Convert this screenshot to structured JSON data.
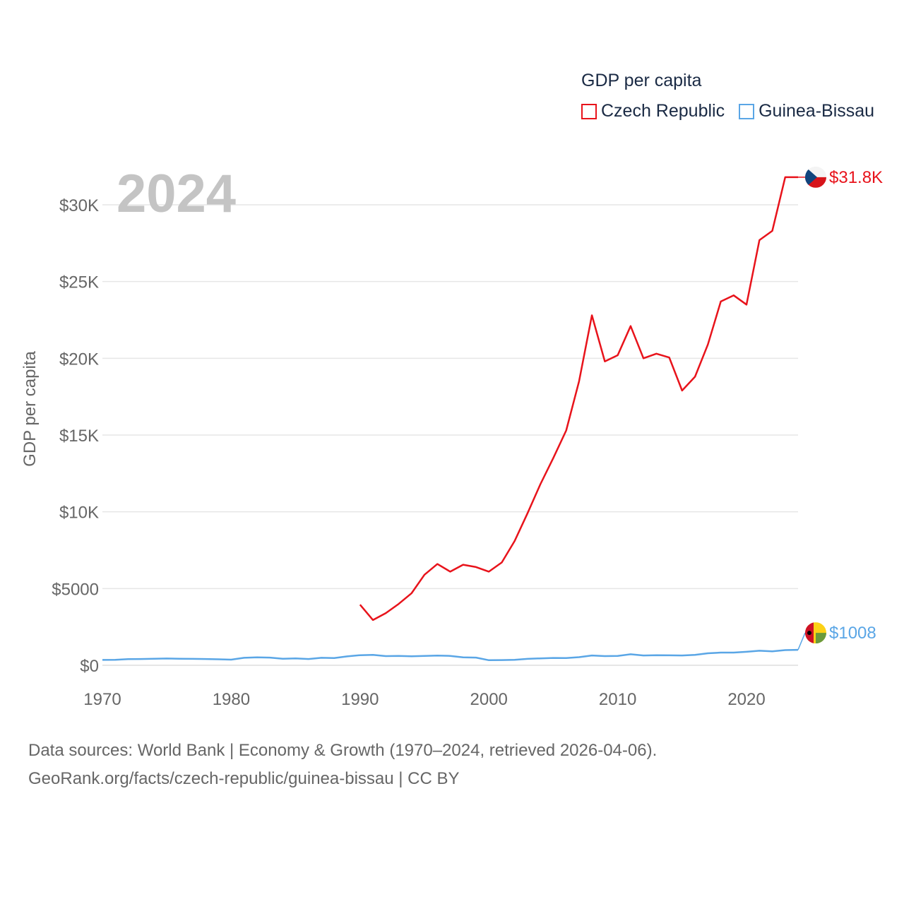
{
  "legend": {
    "title": "GDP per capita",
    "items": [
      {
        "label": "Czech Republic",
        "color": "#e8131b"
      },
      {
        "label": "Guinea-Bissau",
        "color": "#5aa6e6"
      }
    ]
  },
  "year_label": "2024",
  "footer": {
    "line1": "Data sources: World Bank | Economy & Growth (1970–2024, retrieved 2026-04-06).",
    "line2": "GeoRank.org/facts/czech-republic/guinea-bissau | CC BY"
  },
  "chart_data": {
    "type": "line",
    "title": "GDP per capita",
    "xlabel": "",
    "ylabel": "GDP per capita",
    "xlim": [
      1970,
      2024
    ],
    "ylim": [
      0,
      33000
    ],
    "grid": true,
    "legend_position": "top-right",
    "x_ticks": [
      1970,
      1980,
      1990,
      2000,
      2010,
      2020
    ],
    "x_tick_labels": [
      "1970",
      "1980",
      "1990",
      "2000",
      "2010",
      "2020"
    ],
    "y_ticks": [
      0,
      5000,
      10000,
      15000,
      20000,
      25000,
      30000
    ],
    "y_tick_labels": [
      "$0",
      "$5000",
      "$10K",
      "$15K",
      "$20K",
      "$25K",
      "$30K"
    ],
    "series": [
      {
        "name": "Czech Republic",
        "color": "#e8131b",
        "end_label": "$31.8K",
        "x": [
          1990,
          1991,
          1992,
          1993,
          1994,
          1995,
          1996,
          1997,
          1998,
          1999,
          2000,
          2001,
          2002,
          2003,
          2004,
          2005,
          2006,
          2007,
          2008,
          2009,
          2010,
          2011,
          2012,
          2013,
          2014,
          2015,
          2016,
          2017,
          2018,
          2019,
          2020,
          2021,
          2022,
          2023,
          2024
        ],
        "values": [
          3950,
          2950,
          3400,
          4000,
          4700,
          5900,
          6600,
          6100,
          6550,
          6400,
          6100,
          6700,
          8100,
          9900,
          11800,
          13500,
          15300,
          18500,
          22800,
          19800,
          20200,
          22100,
          20000,
          20300,
          20050,
          17900,
          18800,
          20900,
          23700,
          24100,
          23500,
          27700,
          28300,
          31800,
          31800
        ]
      },
      {
        "name": "Guinea-Bissau",
        "color": "#5aa6e6",
        "end_label": "$1008",
        "x": [
          1970,
          1971,
          1972,
          1973,
          1974,
          1975,
          1976,
          1977,
          1978,
          1979,
          1980,
          1981,
          1982,
          1983,
          1984,
          1985,
          1986,
          1987,
          1988,
          1989,
          1990,
          1991,
          1992,
          1993,
          1994,
          1995,
          1996,
          1997,
          1998,
          1999,
          2000,
          2001,
          2002,
          2003,
          2004,
          2005,
          2006,
          2007,
          2008,
          2009,
          2010,
          2011,
          2012,
          2013,
          2014,
          2015,
          2016,
          2017,
          2018,
          2019,
          2020,
          2021,
          2022,
          2023,
          2024
        ],
        "values": [
          350,
          360,
          400,
          410,
          430,
          440,
          430,
          420,
          410,
          390,
          370,
          490,
          520,
          500,
          430,
          450,
          410,
          490,
          470,
          580,
          660,
          680,
          600,
          610,
          590,
          610,
          630,
          610,
          520,
          500,
          330,
          340,
          360,
          420,
          450,
          480,
          470,
          530,
          640,
          600,
          610,
          720,
          640,
          660,
          650,
          640,
          680,
          780,
          830,
          830,
          880,
          950,
          910,
          990,
          1008
        ]
      }
    ]
  }
}
